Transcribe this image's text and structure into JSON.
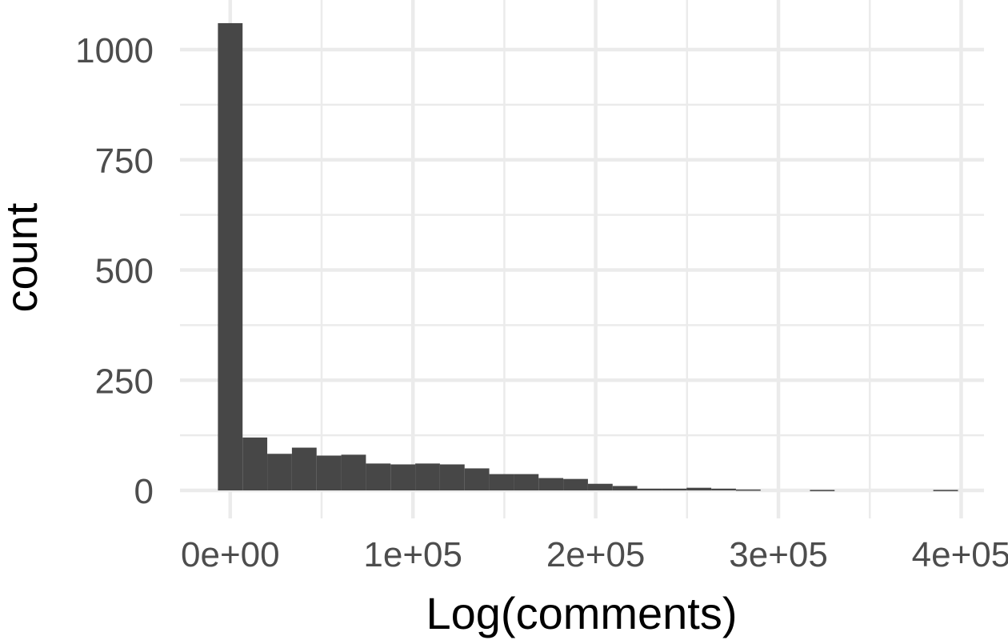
{
  "chart_data": {
    "type": "bar",
    "title": "",
    "xlabel": "Log(comments)",
    "ylabel": "count",
    "xlim": [
      -27500,
      412500
    ],
    "ylim": [
      -50,
      1100
    ],
    "x_ticks": [
      {
        "value": 0,
        "label": "0e+00"
      },
      {
        "value": 100000,
        "label": "1e+05"
      },
      {
        "value": 200000,
        "label": "2e+05"
      },
      {
        "value": 300000,
        "label": "3e+05"
      },
      {
        "value": 400000,
        "label": "4e+05"
      }
    ],
    "y_ticks": [
      {
        "value": 0,
        "label": "0"
      },
      {
        "value": 250,
        "label": "250"
      },
      {
        "value": 500,
        "label": "500"
      },
      {
        "value": 750,
        "label": "750"
      },
      {
        "value": 1000,
        "label": "1000"
      }
    ],
    "grid": true,
    "bar_color": "#474747",
    "grid_color": "#ebebeb",
    "bin_width": 13500,
    "bins": [
      {
        "x": 0,
        "count": 1060
      },
      {
        "x": 13500,
        "count": 120
      },
      {
        "x": 27000,
        "count": 83
      },
      {
        "x": 40500,
        "count": 97
      },
      {
        "x": 54000,
        "count": 79
      },
      {
        "x": 67500,
        "count": 81
      },
      {
        "x": 81000,
        "count": 61
      },
      {
        "x": 94500,
        "count": 59
      },
      {
        "x": 108000,
        "count": 61
      },
      {
        "x": 121500,
        "count": 59
      },
      {
        "x": 135000,
        "count": 50
      },
      {
        "x": 148500,
        "count": 37
      },
      {
        "x": 162000,
        "count": 37
      },
      {
        "x": 175500,
        "count": 28
      },
      {
        "x": 189000,
        "count": 26
      },
      {
        "x": 202500,
        "count": 15
      },
      {
        "x": 216000,
        "count": 10
      },
      {
        "x": 229500,
        "count": 4
      },
      {
        "x": 243000,
        "count": 4
      },
      {
        "x": 256500,
        "count": 6
      },
      {
        "x": 270000,
        "count": 4
      },
      {
        "x": 283500,
        "count": 2
      },
      {
        "x": 297000,
        "count": 0
      },
      {
        "x": 310500,
        "count": 0
      },
      {
        "x": 324000,
        "count": 1
      },
      {
        "x": 337500,
        "count": 0
      },
      {
        "x": 351000,
        "count": 0
      },
      {
        "x": 364500,
        "count": 0
      },
      {
        "x": 378000,
        "count": 0
      },
      {
        "x": 391500,
        "count": 1
      }
    ]
  }
}
